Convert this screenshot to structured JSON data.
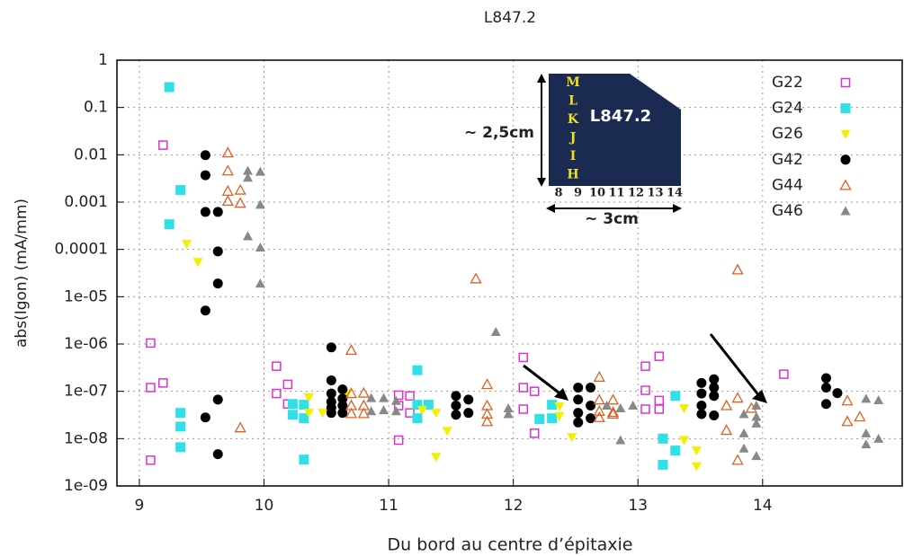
{
  "chart_data": {
    "type": "scatter",
    "title": "L847.2",
    "x_label": "Du bord au centre d’épitaxie",
    "y_label": "abs(Igon) (mA/mm)",
    "xlim": [
      8.82,
      15.12
    ],
    "ylim": [
      1e-09,
      1
    ],
    "log_y": true,
    "grid": true,
    "legend": "upper right",
    "xticks": [
      9,
      10,
      11,
      12,
      13,
      14
    ],
    "yticks": [
      1,
      0.1,
      0.01,
      0.001,
      0.0001,
      {
        "value": 1e-05,
        "label": "1e-05"
      },
      {
        "value": 1e-06,
        "label": "1e-06"
      },
      {
        "value": 1e-07,
        "label": "1e-07"
      },
      {
        "value": 1e-08,
        "label": "1e-08"
      },
      {
        "value": 1e-09,
        "label": "1e-09"
      }
    ],
    "series": [
      {
        "name": "G22",
        "color": "#e030d0",
        "marker": "open-square",
        "x": [
          9.19,
          9.09,
          9.09,
          9.19,
          9.09,
          10.1,
          10.1,
          10.19,
          10.19,
          11.08,
          11.08,
          11.08,
          11.17,
          11.17,
          12.08,
          12.08,
          12.08,
          12.17,
          12.17,
          13.06,
          13.06,
          13.06,
          13.17,
          13.17,
          13.17,
          14.17
        ],
        "values": [
          0.016,
          1.05e-06,
          1.2e-07,
          1.5e-07,
          3.5e-09,
          3.4e-07,
          9e-08,
          1.4e-07,
          5.4e-08,
          8.3e-08,
          5e-08,
          9.3e-09,
          8e-08,
          3.5e-08,
          5.2e-07,
          1.2e-07,
          4.2e-08,
          1e-07,
          1.3e-08,
          3.4e-07,
          1.05e-07,
          4.2e-08,
          5.5e-07,
          6.4e-08,
          4.2e-08,
          2.3e-07
        ]
      },
      {
        "name": "G24",
        "color": "#30e0e8",
        "marker": "square",
        "x": [
          9.24,
          9.24,
          9.33,
          9.33,
          9.33,
          9.33,
          10.23,
          10.23,
          10.32,
          10.32,
          10.32,
          11.23,
          11.23,
          11.23,
          11.32,
          12.21,
          12.31,
          12.31,
          13.2,
          13.2,
          13.3,
          13.3
        ],
        "values": [
          0.27,
          0.00034,
          0.0018,
          3.5e-08,
          1.8e-08,
          6.6e-09,
          5.4e-08,
          3.2e-08,
          5.2e-08,
          2.7e-08,
          3.6e-09,
          2.8e-07,
          5.2e-08,
          2.7e-08,
          5.2e-08,
          2.6e-08,
          5.2e-08,
          2.7e-08,
          1e-08,
          2.8e-09,
          8e-08,
          5.6e-09
        ]
      },
      {
        "name": "G26",
        "color": "#f0f000",
        "marker": "down-triangle",
        "x": [
          9.38,
          9.47,
          10.36,
          10.36,
          10.47,
          10.67,
          11.27,
          11.38,
          11.38,
          11.47,
          12.37,
          12.37,
          12.47,
          13.37,
          13.37,
          13.47,
          13.47
        ],
        "values": [
          0.00013,
          5.4e-05,
          7.4e-08,
          3.5e-08,
          3.5e-08,
          9e-08,
          4e-08,
          3.5e-08,
          4.1e-09,
          1.45e-08,
          4.8e-08,
          3e-08,
          1.07e-08,
          4.4e-08,
          9.3e-09,
          5.6e-09,
          2.6e-09
        ]
      },
      {
        "name": "G42",
        "color": "#000000",
        "marker": "circle",
        "x": [
          9.53,
          9.53,
          9.53,
          9.53,
          9.53,
          9.63,
          9.63,
          9.63,
          9.63,
          9.63,
          10.54,
          10.54,
          10.54,
          10.54,
          10.54,
          10.54,
          10.63,
          10.63,
          10.63,
          10.63,
          11.54,
          11.54,
          11.54,
          11.64,
          11.64,
          12.52,
          12.52,
          12.52,
          12.52,
          12.62,
          12.62,
          12.62,
          13.51,
          13.51,
          13.51,
          13.51,
          13.61,
          13.61,
          13.61,
          13.61,
          14.51,
          14.51,
          14.51,
          14.6
        ],
        "values": [
          0.0098,
          0.0037,
          0.00062,
          5.1e-06,
          2.8e-08,
          0.00062,
          9.1e-05,
          1.9e-05,
          6.7e-08,
          4.7e-09,
          8.5e-07,
          1.7e-07,
          9e-08,
          6e-08,
          4.5e-08,
          3.5e-08,
          1.1e-07,
          7e-08,
          5e-08,
          3.5e-08,
          8e-08,
          5e-08,
          3.2e-08,
          6.7e-08,
          3.5e-08,
          1.2e-07,
          6.7e-08,
          3.5e-08,
          2.2e-08,
          1.2e-07,
          5e-08,
          2.7e-08,
          1.5e-07,
          9e-08,
          5e-08,
          3.3e-08,
          1.8e-07,
          1.2e-07,
          8e-08,
          3.1e-08,
          1.9e-07,
          1.2e-07,
          5.4e-08,
          9.2e-08
        ]
      },
      {
        "name": "G44",
        "color": "#e06020",
        "marker": "open-triangle",
        "x": [
          9.71,
          9.71,
          9.71,
          9.71,
          9.81,
          9.81,
          9.81,
          10.7,
          10.7,
          10.7,
          10.7,
          10.8,
          10.8,
          10.8,
          11.7,
          11.79,
          11.79,
          11.79,
          11.79,
          12.69,
          12.69,
          12.69,
          12.69,
          12.8,
          12.8,
          12.8,
          13.71,
          13.71,
          13.8,
          13.8,
          13.8,
          13.91,
          14.68,
          14.68,
          14.78
        ],
        "values": [
          0.011,
          0.0046,
          0.0017,
          0.00105,
          0.0018,
          0.00095,
          1.7e-08,
          7.4e-07,
          9e-08,
          5e-08,
          3.4e-08,
          9.2e-08,
          5e-08,
          3.4e-08,
          2.4e-05,
          1.4e-07,
          5e-08,
          3.3e-08,
          2.3e-08,
          2e-07,
          6.6e-08,
          3.8e-08,
          2.8e-08,
          6.6e-08,
          3.6e-08,
          3.3e-08,
          5e-08,
          1.5e-08,
          3.7e-05,
          7.2e-08,
          3.5e-09,
          4.4e-08,
          6.3e-08,
          2.3e-08,
          2.9e-08
        ]
      },
      {
        "name": "G46",
        "color": "#888888",
        "marker": "triangle",
        "x": [
          9.87,
          9.87,
          9.97,
          9.97,
          9.87,
          9.97,
          9.97,
          10.86,
          10.86,
          10.96,
          10.96,
          11.06,
          11.06,
          11.86,
          11.96,
          11.96,
          12.75,
          12.86,
          12.86,
          12.96,
          13.85,
          13.85,
          13.85,
          13.95,
          13.95,
          13.95,
          13.95,
          14.83,
          14.83,
          14.83,
          14.93,
          14.93
        ],
        "values": [
          0.0046,
          0.0033,
          0.0044,
          0.00088,
          0.00019,
          0.00011,
          1.9e-05,
          7.2e-08,
          3.8e-08,
          7.2e-08,
          4e-08,
          6.3e-08,
          3.8e-08,
          1.8e-06,
          4.4e-08,
          3.3e-08,
          5e-08,
          9.3e-09,
          4.4e-08,
          5e-08,
          3.3e-08,
          1.3e-08,
          6.2e-09,
          5e-08,
          2.9e-08,
          2.1e-08,
          4.3e-09,
          7e-08,
          1.3e-08,
          7.6e-09,
          6.5e-08,
          1e-08
        ]
      }
    ],
    "inset": {
      "label": "L847.2",
      "rows": [
        "M",
        "L",
        "K",
        "J",
        "I",
        "H"
      ],
      "cols": [
        "8",
        "9",
        "10",
        "11",
        "12",
        "13",
        "14"
      ],
      "height_label": "~ 2,5cm",
      "width_label": "~ 3cm"
    }
  }
}
